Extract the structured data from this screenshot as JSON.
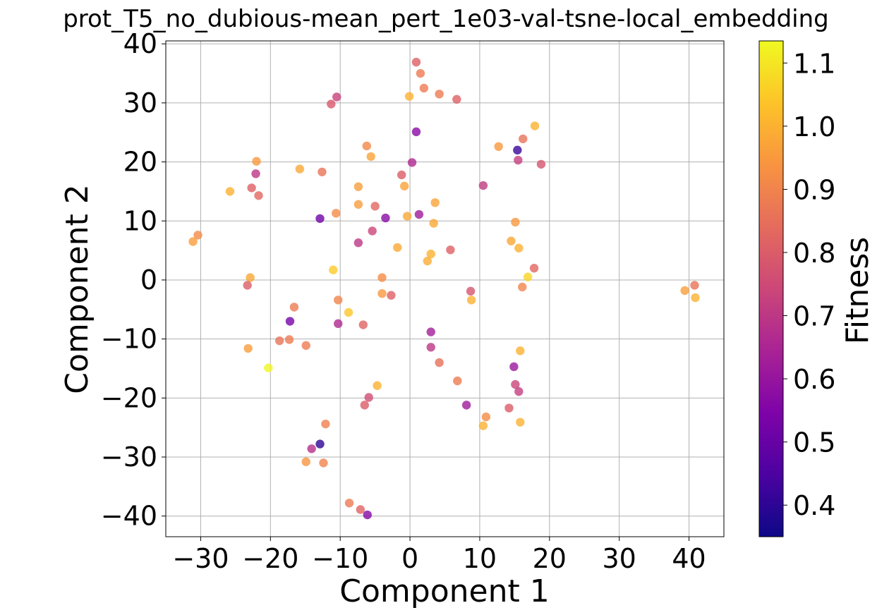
{
  "chart_data": {
    "type": "scatter",
    "title": "prot_T5_no_dubious-mean_pert_1e03-val-tsne-local_embedding",
    "xlabel": "Component 1",
    "ylabel": "Component 2",
    "xlim": [
      -35,
      45
    ],
    "ylim": [
      -43.5,
      40.5
    ],
    "xticks": [
      -30,
      -20,
      -10,
      0,
      10,
      20,
      30,
      40
    ],
    "xtick_labels": [
      "−30",
      "−20",
      "−10",
      "0",
      "10",
      "20",
      "30",
      "40"
    ],
    "yticks": [
      -40,
      -30,
      -20,
      -10,
      0,
      10,
      20,
      30,
      40
    ],
    "ytick_labels": [
      "−40",
      "−30",
      "−20",
      "−10",
      "0",
      "10",
      "20",
      "30",
      "40"
    ],
    "grid": true,
    "colorbar": {
      "label": "Fitness",
      "colormap": "plasma",
      "range": [
        0.35,
        1.135
      ],
      "ticks": [
        0.4,
        0.5,
        0.6,
        0.7,
        0.8,
        0.9,
        1.0,
        1.1
      ],
      "tick_labels": [
        "0.4",
        "0.5",
        "0.6",
        "0.7",
        "0.8",
        "0.9",
        "1.0",
        "1.1"
      ]
    },
    "points": [
      {
        "x": 0.9,
        "y": 36.9,
        "fitness": 0.81
      },
      {
        "x": 1.5,
        "y": 35.0,
        "fitness": 0.88
      },
      {
        "x": 2.0,
        "y": 32.5,
        "fitness": 0.88
      },
      {
        "x": 4.2,
        "y": 31.5,
        "fitness": 0.88
      },
      {
        "x": 6.7,
        "y": 30.6,
        "fitness": 0.81
      },
      {
        "x": -0.1,
        "y": 31.1,
        "fitness": 1.0
      },
      {
        "x": -10.5,
        "y": 31.0,
        "fitness": 0.73
      },
      {
        "x": -11.3,
        "y": 29.8,
        "fitness": 0.79
      },
      {
        "x": 0.9,
        "y": 25.1,
        "fitness": 0.57
      },
      {
        "x": 17.9,
        "y": 26.1,
        "fitness": 1.0
      },
      {
        "x": 16.2,
        "y": 23.9,
        "fitness": 0.86
      },
      {
        "x": 12.7,
        "y": 22.6,
        "fitness": 0.95
      },
      {
        "x": 15.4,
        "y": 22.0,
        "fitness": 0.42
      },
      {
        "x": 15.5,
        "y": 20.3,
        "fitness": 0.72
      },
      {
        "x": 18.8,
        "y": 19.6,
        "fitness": 0.78
      },
      {
        "x": -6.2,
        "y": 22.7,
        "fitness": 0.91
      },
      {
        "x": -5.6,
        "y": 20.9,
        "fitness": 0.97
      },
      {
        "x": 0.3,
        "y": 19.9,
        "fitness": 0.66
      },
      {
        "x": -22.0,
        "y": 20.1,
        "fitness": 0.95
      },
      {
        "x": -22.1,
        "y": 18.0,
        "fitness": 0.7
      },
      {
        "x": -15.8,
        "y": 18.8,
        "fitness": 0.98
      },
      {
        "x": -12.6,
        "y": 18.3,
        "fitness": 0.86
      },
      {
        "x": -1.2,
        "y": 17.8,
        "fitness": 0.8
      },
      {
        "x": -0.8,
        "y": 15.9,
        "fitness": 0.97
      },
      {
        "x": 10.5,
        "y": 16.0,
        "fitness": 0.71
      },
      {
        "x": -22.7,
        "y": 15.6,
        "fitness": 0.81
      },
      {
        "x": -21.7,
        "y": 14.3,
        "fitness": 0.83
      },
      {
        "x": -25.8,
        "y": 15.0,
        "fitness": 1.0
      },
      {
        "x": -7.4,
        "y": 15.8,
        "fitness": 0.96
      },
      {
        "x": -7.4,
        "y": 12.8,
        "fitness": 0.96
      },
      {
        "x": -5.0,
        "y": 12.5,
        "fitness": 0.83
      },
      {
        "x": -10.6,
        "y": 11.3,
        "fitness": 0.92
      },
      {
        "x": 3.6,
        "y": 13.1,
        "fitness": 0.97
      },
      {
        "x": 1.3,
        "y": 11.1,
        "fitness": 0.62
      },
      {
        "x": -0.4,
        "y": 10.8,
        "fitness": 0.98
      },
      {
        "x": -3.5,
        "y": 10.5,
        "fitness": 0.57
      },
      {
        "x": -12.9,
        "y": 10.4,
        "fitness": 0.52
      },
      {
        "x": 3.4,
        "y": 9.6,
        "fitness": 0.98
      },
      {
        "x": 15.1,
        "y": 9.8,
        "fitness": 0.95
      },
      {
        "x": -5.4,
        "y": 8.3,
        "fitness": 0.74
      },
      {
        "x": -7.4,
        "y": 6.3,
        "fitness": 0.7
      },
      {
        "x": -30.4,
        "y": 7.6,
        "fitness": 0.92
      },
      {
        "x": -31.1,
        "y": 6.5,
        "fitness": 0.96
      },
      {
        "x": 14.5,
        "y": 6.6,
        "fitness": 0.98
      },
      {
        "x": 15.6,
        "y": 5.4,
        "fitness": 1.0
      },
      {
        "x": -1.8,
        "y": 5.5,
        "fitness": 0.98
      },
      {
        "x": 5.8,
        "y": 5.1,
        "fitness": 0.81
      },
      {
        "x": 3.0,
        "y": 4.4,
        "fitness": 1.0
      },
      {
        "x": 2.5,
        "y": 3.2,
        "fitness": 0.99
      },
      {
        "x": 17.8,
        "y": 2.0,
        "fitness": 0.83
      },
      {
        "x": -11.0,
        "y": 1.7,
        "fitness": 1.05
      },
      {
        "x": -22.9,
        "y": 0.4,
        "fitness": 0.98
      },
      {
        "x": -4.0,
        "y": 0.4,
        "fitness": 0.92
      },
      {
        "x": 16.9,
        "y": 0.5,
        "fitness": 1.07
      },
      {
        "x": -23.3,
        "y": -0.9,
        "fitness": 0.8
      },
      {
        "x": 16.1,
        "y": -1.2,
        "fitness": 0.9
      },
      {
        "x": 8.7,
        "y": -1.9,
        "fitness": 0.78
      },
      {
        "x": 39.4,
        "y": -1.8,
        "fitness": 0.96
      },
      {
        "x": 40.8,
        "y": -0.9,
        "fitness": 0.86
      },
      {
        "x": 40.9,
        "y": -3.0,
        "fitness": 1.0
      },
      {
        "x": -4.0,
        "y": -2.3,
        "fitness": 0.95
      },
      {
        "x": -2.7,
        "y": -2.6,
        "fitness": 0.81
      },
      {
        "x": 8.8,
        "y": -3.4,
        "fitness": 1.0
      },
      {
        "x": -10.3,
        "y": -3.4,
        "fitness": 0.9
      },
      {
        "x": -16.6,
        "y": -4.6,
        "fitness": 0.88
      },
      {
        "x": -8.8,
        "y": -5.5,
        "fitness": 1.04
      },
      {
        "x": -17.2,
        "y": -7.0,
        "fitness": 0.53
      },
      {
        "x": -10.3,
        "y": -7.4,
        "fitness": 0.66
      },
      {
        "x": -6.7,
        "y": -7.6,
        "fitness": 0.82
      },
      {
        "x": 3.0,
        "y": -8.8,
        "fitness": 0.63
      },
      {
        "x": -18.7,
        "y": -10.3,
        "fitness": 0.86
      },
      {
        "x": -17.3,
        "y": -10.1,
        "fitness": 0.88
      },
      {
        "x": -14.9,
        "y": -11.1,
        "fitness": 0.88
      },
      {
        "x": -23.2,
        "y": -11.6,
        "fitness": 0.96
      },
      {
        "x": 3.0,
        "y": -11.4,
        "fitness": 0.7
      },
      {
        "x": 15.8,
        "y": -12.0,
        "fitness": 1.0
      },
      {
        "x": 4.2,
        "y": -14.0,
        "fitness": 0.85
      },
      {
        "x": -20.3,
        "y": -14.9,
        "fitness": 1.13
      },
      {
        "x": 14.9,
        "y": -14.7,
        "fitness": 0.61
      },
      {
        "x": 6.8,
        "y": -17.1,
        "fitness": 0.88
      },
      {
        "x": -4.7,
        "y": -17.9,
        "fitness": 1.0
      },
      {
        "x": 15.1,
        "y": -17.7,
        "fitness": 0.74
      },
      {
        "x": 15.6,
        "y": -18.9,
        "fitness": 0.72
      },
      {
        "x": -5.9,
        "y": -19.9,
        "fitness": 0.76
      },
      {
        "x": -6.5,
        "y": -21.2,
        "fitness": 0.8
      },
      {
        "x": 8.1,
        "y": -21.2,
        "fitness": 0.62
      },
      {
        "x": 14.2,
        "y": -21.7,
        "fitness": 0.8
      },
      {
        "x": 10.9,
        "y": -23.2,
        "fitness": 0.92
      },
      {
        "x": 10.5,
        "y": -24.7,
        "fitness": 1.0
      },
      {
        "x": 15.8,
        "y": -24.1,
        "fitness": 1.0
      },
      {
        "x": -12.1,
        "y": -24.4,
        "fitness": 0.89
      },
      {
        "x": -12.9,
        "y": -27.8,
        "fitness": 0.4
      },
      {
        "x": -14.1,
        "y": -28.6,
        "fitness": 0.68
      },
      {
        "x": -14.9,
        "y": -30.8,
        "fitness": 0.94
      },
      {
        "x": -12.4,
        "y": -31.0,
        "fitness": 0.9
      },
      {
        "x": -8.7,
        "y": -37.8,
        "fitness": 0.88
      },
      {
        "x": -7.1,
        "y": -38.9,
        "fitness": 0.82
      },
      {
        "x": -6.1,
        "y": -39.8,
        "fitness": 0.56
      }
    ]
  }
}
